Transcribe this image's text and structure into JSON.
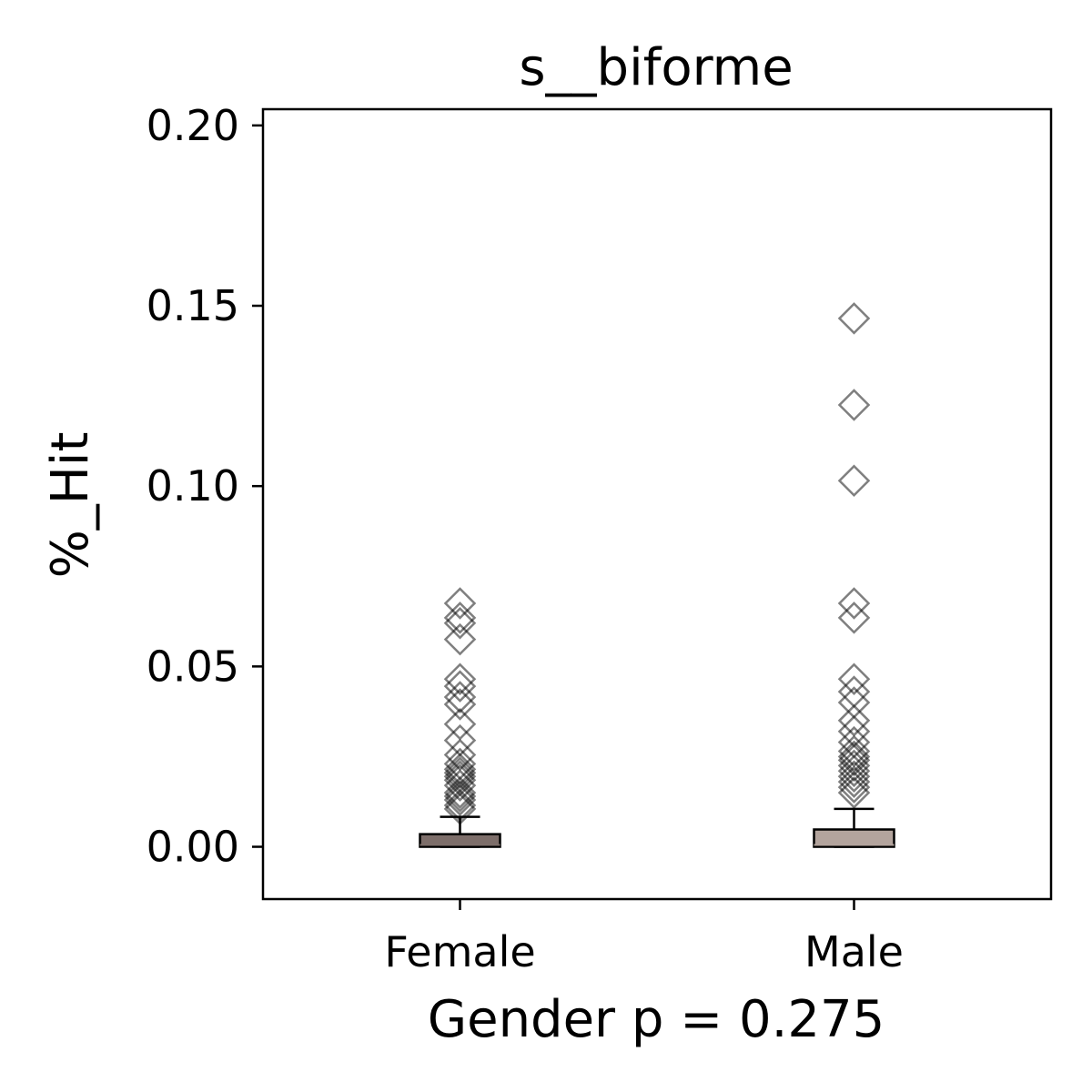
{
  "chart_data": {
    "type": "box",
    "title": "s__biforme",
    "xlabel": "Gender p = 0.275",
    "ylabel": "%_Hit",
    "ylim": [
      -0.0145,
      0.2045
    ],
    "yticks": [
      "0.00",
      "0.05",
      "0.10",
      "0.15",
      "0.20"
    ],
    "ytick_values": [
      0,
      0.05,
      0.1,
      0.15,
      0.2
    ],
    "categories": [
      "Female",
      "Male"
    ],
    "grid": false,
    "legend": "none",
    "series": [
      {
        "category": "Female",
        "color": "#7d6e6a",
        "q1": 0.0,
        "median": 0.0005,
        "q3": 0.0035,
        "whisker_low": 0.0,
        "whisker_high": 0.0083,
        "outliers": [
          0.0675,
          0.0635,
          0.062,
          0.0575,
          0.0465,
          0.0445,
          0.0415,
          0.0395,
          0.034,
          0.0295,
          0.0255,
          0.023,
          0.0215,
          0.0205,
          0.0195,
          0.0185,
          0.017,
          0.015,
          0.014,
          0.013,
          0.0115,
          0.0105
        ]
      },
      {
        "category": "Male",
        "color": "#b3a49d",
        "q1": 0.0,
        "median": 0.0005,
        "q3": 0.0048,
        "whisker_low": 0.0,
        "whisker_high": 0.0105,
        "outliers": [
          0.1465,
          0.1225,
          0.1015,
          0.0675,
          0.0635,
          0.0465,
          0.043,
          0.04,
          0.035,
          0.032,
          0.029,
          0.0265,
          0.025,
          0.024,
          0.0225,
          0.021,
          0.0195,
          0.018,
          0.0165,
          0.015
        ]
      }
    ]
  }
}
